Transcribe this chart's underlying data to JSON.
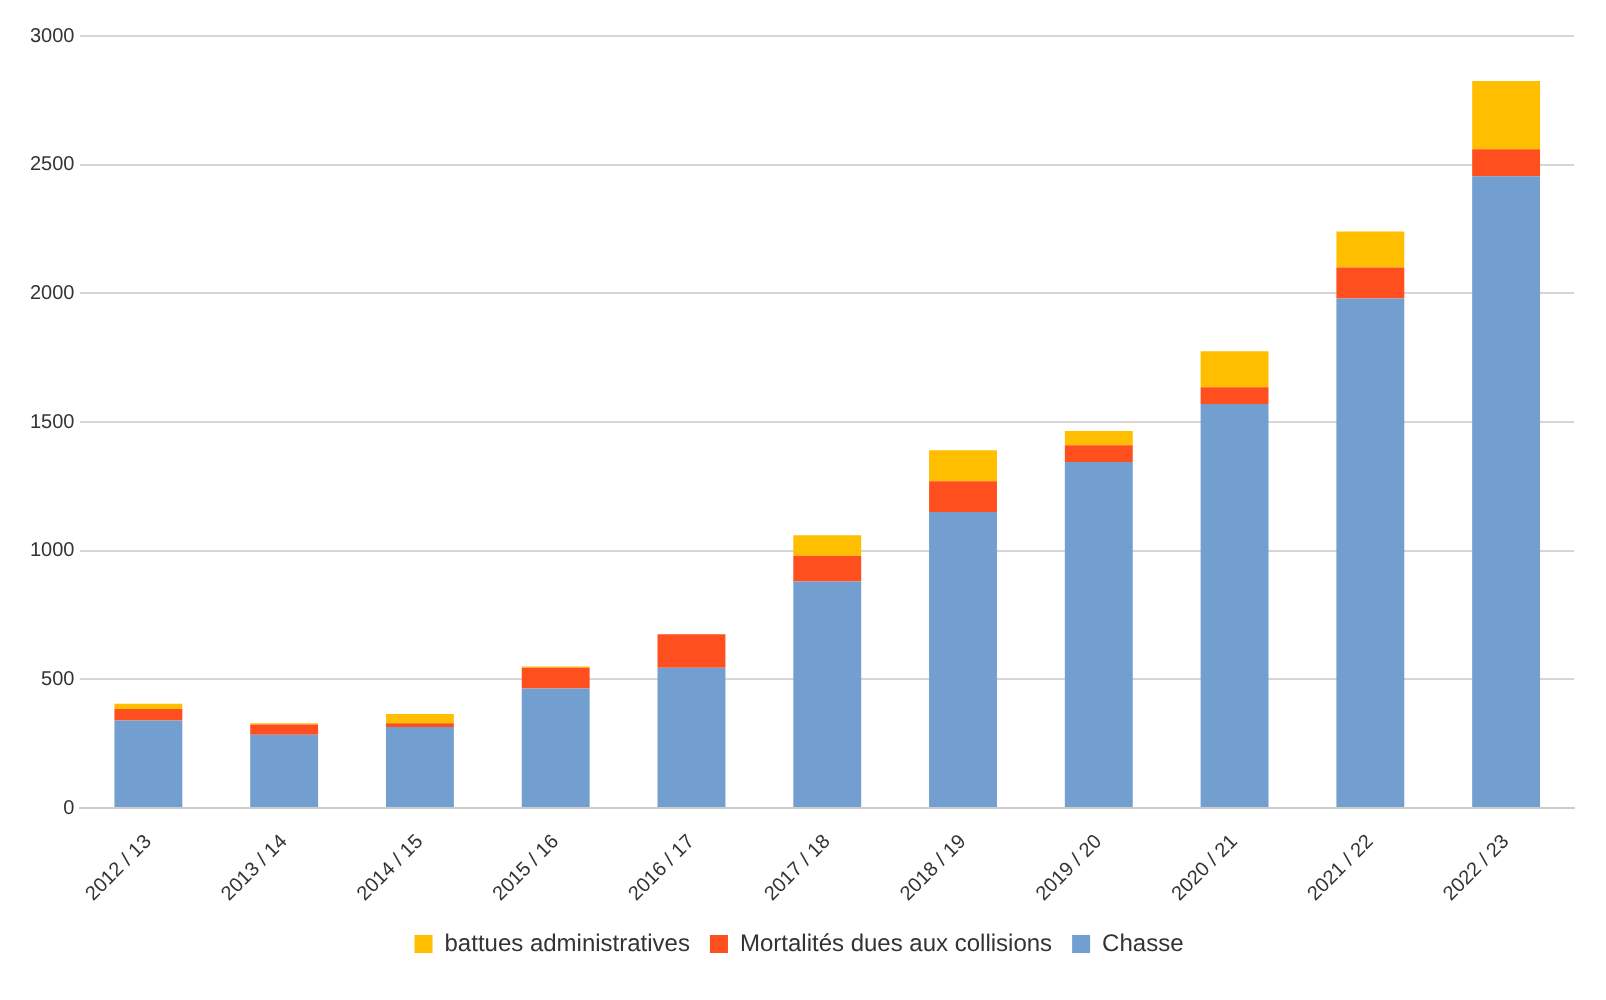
{
  "chart_data": {
    "type": "bar",
    "stacked": true,
    "categories": [
      "2012 / 13",
      "2013 / 14",
      "2014 / 15",
      "2015 / 16",
      "2016 / 17",
      "2017 / 18",
      "2018 / 19",
      "2019 / 20",
      "2020 / 21",
      "2021 / 22",
      "2022 / 23"
    ],
    "series": [
      {
        "name": "Chasse",
        "color": "#729fcf",
        "values": [
          340,
          285,
          315,
          465,
          545,
          880,
          1150,
          1345,
          1570,
          1980,
          2455
        ]
      },
      {
        "name": "Mortalités dues aux collisions",
        "color": "#ff4f1f",
        "values": [
          45,
          40,
          15,
          80,
          130,
          100,
          120,
          65,
          65,
          120,
          105
        ]
      },
      {
        "name": "battues administratives",
        "color": "#ffbf00",
        "values": [
          20,
          5,
          35,
          5,
          0,
          80,
          120,
          55,
          140,
          140,
          265
        ]
      }
    ],
    "ylim": [
      0,
      3000
    ],
    "yticks": [
      0,
      500,
      1000,
      1500,
      2000,
      2500,
      3000
    ],
    "grid": "y",
    "legend": "bottom"
  }
}
